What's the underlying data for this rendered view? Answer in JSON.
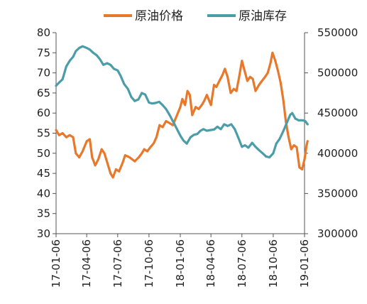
{
  "chart_data": {
    "type": "line",
    "title": "",
    "legend_position": "top",
    "grid": false,
    "x_tick_labels": [
      "17-01-06",
      "17-04-06",
      "17-07-06",
      "17-10-06",
      "18-01-06",
      "18-04-06",
      "18-07-06",
      "18-10-06",
      "19-01-06"
    ],
    "x_tick_dates": [
      "2017-01-06",
      "2017-04-06",
      "2017-07-06",
      "2017-10-06",
      "2018-01-06",
      "2018-04-06",
      "2018-07-06",
      "2018-10-06",
      "2019-01-06"
    ],
    "y_left": {
      "ylim": [
        30,
        80
      ],
      "ticks": [
        "30",
        "35",
        "40",
        "45",
        "50",
        "55",
        "60",
        "65",
        "70",
        "75",
        "80"
      ]
    },
    "y_right": {
      "ylim": [
        300000,
        550000
      ],
      "ticks": [
        "300000",
        "350000",
        "400000",
        "450000",
        "500000",
        "550000"
      ]
    },
    "series": [
      {
        "name": "原油价格",
        "axis": "left",
        "color": "#E8782A",
        "points": [
          [
            "2017-01-06",
            55.8
          ],
          [
            "2017-01-15",
            54.5
          ],
          [
            "2017-01-25",
            55.0
          ],
          [
            "2017-02-05",
            54.0
          ],
          [
            "2017-02-15",
            54.5
          ],
          [
            "2017-02-25",
            54.0
          ],
          [
            "2017-03-05",
            50.0
          ],
          [
            "2017-03-15",
            49.0
          ],
          [
            "2017-03-25",
            50.5
          ],
          [
            "2017-04-06",
            53.0
          ],
          [
            "2017-04-15",
            53.5
          ],
          [
            "2017-04-22",
            49.0
          ],
          [
            "2017-05-01",
            47.0
          ],
          [
            "2017-05-10",
            48.5
          ],
          [
            "2017-05-20",
            51.0
          ],
          [
            "2017-05-28",
            50.0
          ],
          [
            "2017-06-06",
            47.5
          ],
          [
            "2017-06-15",
            45.0
          ],
          [
            "2017-06-22",
            44.0
          ],
          [
            "2017-07-01",
            46.0
          ],
          [
            "2017-07-10",
            45.5
          ],
          [
            "2017-07-20",
            47.5
          ],
          [
            "2017-07-28",
            49.5
          ],
          [
            "2017-08-10",
            49.0
          ],
          [
            "2017-08-25",
            48.0
          ],
          [
            "2017-09-06",
            49.0
          ],
          [
            "2017-09-15",
            50.0
          ],
          [
            "2017-09-22",
            51.0
          ],
          [
            "2017-10-01",
            50.5
          ],
          [
            "2017-10-10",
            51.5
          ],
          [
            "2017-10-20",
            52.5
          ],
          [
            "2017-10-28",
            54.0
          ],
          [
            "2017-11-06",
            57.0
          ],
          [
            "2017-11-15",
            56.5
          ],
          [
            "2017-11-25",
            58.0
          ],
          [
            "2017-12-05",
            57.5
          ],
          [
            "2017-12-15",
            57.0
          ],
          [
            "2017-12-25",
            59.0
          ],
          [
            "2018-01-06",
            61.5
          ],
          [
            "2018-01-12",
            63.5
          ],
          [
            "2018-01-20",
            62.0
          ],
          [
            "2018-01-27",
            65.5
          ],
          [
            "2018-02-03",
            64.5
          ],
          [
            "2018-02-10",
            59.5
          ],
          [
            "2018-02-20",
            61.5
          ],
          [
            "2018-03-01",
            61.0
          ],
          [
            "2018-03-10",
            62.0
          ],
          [
            "2018-03-17",
            63.0
          ],
          [
            "2018-03-25",
            64.5
          ],
          [
            "2018-04-06",
            62.0
          ],
          [
            "2018-04-15",
            67.0
          ],
          [
            "2018-04-22",
            66.5
          ],
          [
            "2018-05-01",
            68.0
          ],
          [
            "2018-05-10",
            69.5
          ],
          [
            "2018-05-17",
            71.0
          ],
          [
            "2018-05-25",
            69.0
          ],
          [
            "2018-06-03",
            65.0
          ],
          [
            "2018-06-12",
            66.0
          ],
          [
            "2018-06-20",
            65.5
          ],
          [
            "2018-06-28",
            69.0
          ],
          [
            "2018-07-06",
            73.0
          ],
          [
            "2018-07-14",
            70.5
          ],
          [
            "2018-07-22",
            68.0
          ],
          [
            "2018-07-30",
            69.0
          ],
          [
            "2018-08-07",
            68.5
          ],
          [
            "2018-08-15",
            65.5
          ],
          [
            "2018-08-25",
            67.0
          ],
          [
            "2018-09-03",
            68.0
          ],
          [
            "2018-09-12",
            69.0
          ],
          [
            "2018-09-20",
            70.0
          ],
          [
            "2018-09-28",
            72.5
          ],
          [
            "2018-10-04",
            75.0
          ],
          [
            "2018-10-12",
            73.0
          ],
          [
            "2018-10-20",
            70.5
          ],
          [
            "2018-10-28",
            67.5
          ],
          [
            "2018-11-05",
            63.0
          ],
          [
            "2018-11-12",
            58.0
          ],
          [
            "2018-11-20",
            54.0
          ],
          [
            "2018-11-28",
            51.0
          ],
          [
            "2018-12-06",
            52.0
          ],
          [
            "2018-12-14",
            51.5
          ],
          [
            "2018-12-22",
            46.5
          ],
          [
            "2018-12-30",
            46.0
          ],
          [
            "2019-01-06",
            48.5
          ],
          [
            "2019-01-12",
            52.0
          ],
          [
            "2019-01-15",
            53.0
          ]
        ]
      },
      {
        "name": "原油库存",
        "axis": "right",
        "color": "#4B9DA8",
        "points": [
          [
            "2017-01-06",
            484000
          ],
          [
            "2017-01-15",
            488000
          ],
          [
            "2017-01-25",
            492000
          ],
          [
            "2017-02-05",
            508000
          ],
          [
            "2017-02-15",
            515000
          ],
          [
            "2017-02-25",
            520000
          ],
          [
            "2017-03-05",
            527000
          ],
          [
            "2017-03-15",
            531000
          ],
          [
            "2017-03-25",
            533000
          ],
          [
            "2017-04-06",
            531000
          ],
          [
            "2017-04-15",
            529000
          ],
          [
            "2017-04-25",
            525000
          ],
          [
            "2017-05-05",
            522000
          ],
          [
            "2017-05-15",
            517000
          ],
          [
            "2017-05-25",
            510000
          ],
          [
            "2017-06-05",
            512000
          ],
          [
            "2017-06-15",
            510000
          ],
          [
            "2017-06-25",
            505000
          ],
          [
            "2017-07-06",
            503000
          ],
          [
            "2017-07-15",
            496000
          ],
          [
            "2017-07-25",
            486000
          ],
          [
            "2017-08-05",
            480000
          ],
          [
            "2017-08-15",
            470000
          ],
          [
            "2017-08-25",
            465000
          ],
          [
            "2017-09-05",
            467000
          ],
          [
            "2017-09-15",
            475000
          ],
          [
            "2017-09-25",
            473000
          ],
          [
            "2017-10-06",
            463000
          ],
          [
            "2017-10-15",
            462000
          ],
          [
            "2017-10-25",
            462500
          ],
          [
            "2017-11-05",
            464000
          ],
          [
            "2017-11-15",
            460000
          ],
          [
            "2017-11-25",
            455000
          ],
          [
            "2017-12-05",
            448000
          ],
          [
            "2017-12-15",
            440000
          ],
          [
            "2017-12-25",
            432000
          ],
          [
            "2018-01-06",
            422000
          ],
          [
            "2018-01-15",
            416000
          ],
          [
            "2018-01-25",
            412000
          ],
          [
            "2018-02-05",
            420000
          ],
          [
            "2018-02-15",
            423000
          ],
          [
            "2018-02-25",
            424000
          ],
          [
            "2018-03-06",
            428000
          ],
          [
            "2018-03-15",
            430000
          ],
          [
            "2018-03-25",
            428000
          ],
          [
            "2018-04-06",
            429000
          ],
          [
            "2018-04-15",
            429500
          ],
          [
            "2018-04-25",
            433000
          ],
          [
            "2018-05-05",
            430000
          ],
          [
            "2018-05-15",
            436000
          ],
          [
            "2018-05-25",
            434000
          ],
          [
            "2018-06-05",
            436000
          ],
          [
            "2018-06-15",
            430000
          ],
          [
            "2018-06-25",
            420000
          ],
          [
            "2018-07-06",
            408000
          ],
          [
            "2018-07-15",
            410000
          ],
          [
            "2018-07-25",
            407000
          ],
          [
            "2018-08-05",
            413000
          ],
          [
            "2018-08-15",
            408000
          ],
          [
            "2018-08-25",
            404000
          ],
          [
            "2018-09-05",
            400000
          ],
          [
            "2018-09-15",
            396000
          ],
          [
            "2018-09-25",
            395000
          ],
          [
            "2018-10-06",
            400000
          ],
          [
            "2018-10-15",
            412000
          ],
          [
            "2018-10-25",
            418000
          ],
          [
            "2018-11-05",
            428000
          ],
          [
            "2018-11-15",
            438000
          ],
          [
            "2018-11-25",
            448000
          ],
          [
            "2018-12-01",
            450000
          ],
          [
            "2018-12-10",
            443000
          ],
          [
            "2018-12-20",
            441000
          ],
          [
            "2019-01-01",
            441000
          ],
          [
            "2019-01-08",
            440000
          ],
          [
            "2019-01-15",
            436000
          ]
        ]
      }
    ]
  }
}
